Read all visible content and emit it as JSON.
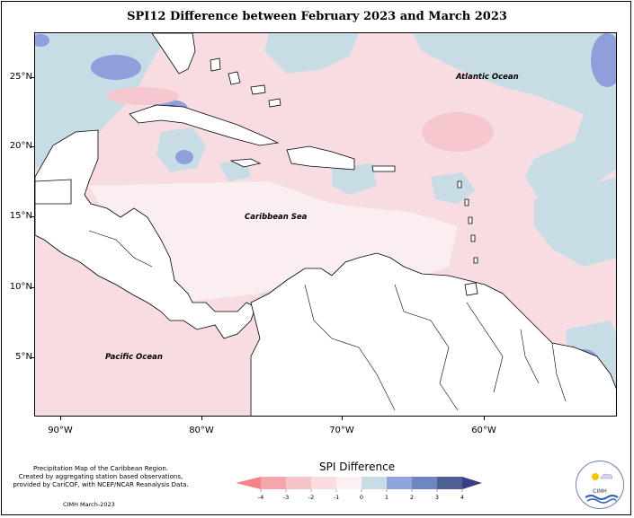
{
  "title": "SPI12 Difference between February 2023 and March 2023",
  "lat_ticks": [
    "25°N",
    "20°N",
    "15°N",
    "10°N",
    "5°N"
  ],
  "lon_ticks": [
    "90°W",
    "80°W",
    "70°W",
    "60°W"
  ],
  "labels": {
    "atlantic": "Atlantic Ocean",
    "caribbean": "Caribbean Sea",
    "pacific": "Pacific Ocean"
  },
  "footer": {
    "line1": "Precipitation Map of the Caribbean Region.",
    "line2": "Created by aggregating station based observations,",
    "line3": "provided by CariCOF, with NCEP/NCAR Reanalysis Data.",
    "credit": "CIMH March-2023"
  },
  "legend": {
    "title": "SPI Difference",
    "ticks": [
      "-4",
      "-3",
      "-2",
      "-1",
      "0",
      "1",
      "2",
      "3",
      "4"
    ],
    "colors": [
      "#f4838a",
      "#f5a6ac",
      "#f5c4c9",
      "#f8dde2",
      "#fbf1f2",
      "#c9dce6",
      "#8fa5dc",
      "#6f86c2",
      "#4e5f93",
      "#3b3f82"
    ]
  },
  "logo": {
    "text": "CIMH"
  },
  "colors": {
    "land": "#ffffff",
    "pink": "#f7dde2",
    "light_pink": "#fbeef0",
    "light_blue": "#c8dce6",
    "blue": "#8f9fdc",
    "dark_blue": "#4e5cb0"
  }
}
